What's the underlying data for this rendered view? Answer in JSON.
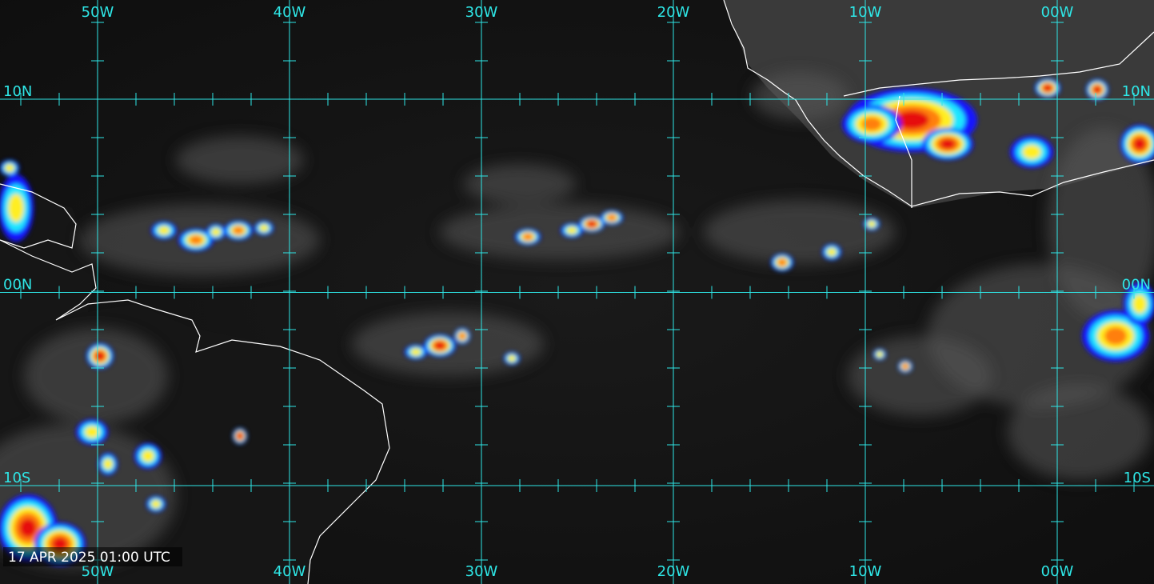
{
  "map": {
    "longitude_labels": [
      "50W",
      "40W",
      "30W",
      "20W",
      "10W",
      "00W"
    ],
    "latitude_labels": [
      "10N",
      "00N",
      "10S"
    ],
    "timestamp": "17 APR 2025 01:00 UTC"
  }
}
